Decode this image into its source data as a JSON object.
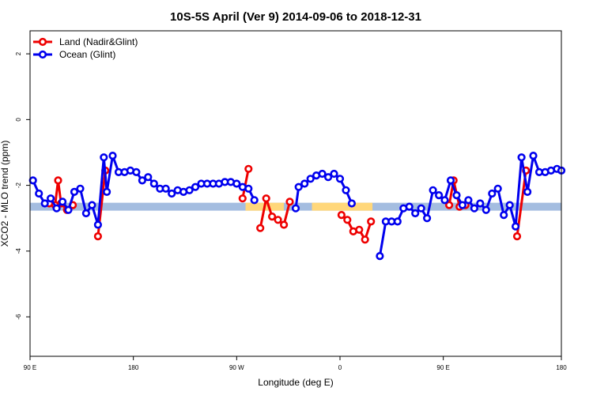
{
  "chart_data": {
    "type": "line",
    "title": "10S-5S April (Ver 9)   2014-09-06 to 2018-12-31",
    "xlabel": "Longitude (deg E)",
    "ylabel": "XCO2 - MLO trend (ppm)",
    "xlim": [
      90,
      450
    ],
    "ylim": [
      -7.2,
      2.7
    ],
    "x_ticks": [
      {
        "value": 90,
        "label": "90 E"
      },
      {
        "value": 160,
        "label": "180"
      },
      {
        "value": 230,
        "label": "90 W"
      },
      {
        "value": 300,
        "label": "0"
      },
      {
        "value": 370,
        "label": "90 E"
      },
      {
        "value": 450,
        "label": "180"
      }
    ],
    "y_ticks": [
      {
        "value": -6,
        "label": "-6"
      },
      {
        "value": -4,
        "label": "-4"
      },
      {
        "value": -2,
        "label": "-2"
      },
      {
        "value": 0,
        "label": "0"
      },
      {
        "value": 2,
        "label": "2"
      }
    ],
    "legend": {
      "position": "top-left",
      "entries": [
        {
          "name": "Land (Nadir&Glint)",
          "color": "#ee0000"
        },
        {
          "name": "Ocean (Glint)",
          "color": "#0000ee"
        }
      ]
    },
    "band": {
      "y_center": -2.65,
      "y_half_width": 0.12,
      "ocean_color": "#a4bde0",
      "land_color": "#ffd77a",
      "land_ranges": [
        [
          236,
          262
        ],
        [
          281,
          322
        ]
      ]
    },
    "series": [
      {
        "name": "Land (Nadir&Glint)",
        "color": "#ee0000",
        "segments": [
          [
            [
              103,
              -2.55
            ],
            [
              107,
              -2.6
            ],
            [
              109,
              -1.85
            ],
            [
              111,
              -2.55
            ],
            [
              115,
              -2.75
            ],
            [
              119,
              -2.6
            ]
          ],
          [
            [
              136,
              -3.55
            ],
            [
              141,
              -1.55
            ]
          ],
          [
            [
              234,
              -2.4
            ],
            [
              238,
              -1.5
            ]
          ],
          [
            [
              246,
              -3.3
            ],
            [
              250,
              -2.4
            ],
            [
              254,
              -2.95
            ],
            [
              258,
              -3.05
            ],
            [
              262,
              -3.2
            ],
            [
              266,
              -2.5
            ]
          ],
          [
            [
              301,
              -2.9
            ],
            [
              305,
              -3.05
            ],
            [
              309,
              -3.4
            ],
            [
              313,
              -3.35
            ],
            [
              317,
              -3.65
            ],
            [
              321,
              -3.1
            ]
          ],
          [
            [
              374,
              -2.6
            ],
            [
              377,
              -1.85
            ],
            [
              381,
              -2.65
            ],
            [
              385,
              -2.6
            ]
          ],
          [
            [
              420,
              -3.55
            ],
            [
              426,
              -1.55
            ]
          ]
        ]
      },
      {
        "name": "Ocean (Glint)",
        "color": "#0000ee",
        "segments": [
          [
            [
              92,
              -1.85
            ],
            [
              96,
              -2.25
            ],
            [
              100,
              -2.55
            ],
            [
              104,
              -2.4
            ],
            [
              108,
              -2.7
            ],
            [
              112,
              -2.5
            ],
            [
              116,
              -2.75
            ],
            [
              120,
              -2.2
            ],
            [
              124,
              -2.1
            ],
            [
              128,
              -2.85
            ],
            [
              132,
              -2.6
            ],
            [
              136,
              -3.2
            ],
            [
              140,
              -1.15
            ],
            [
              142,
              -2.2
            ],
            [
              146,
              -1.1
            ],
            [
              150,
              -1.6
            ],
            [
              154,
              -1.6
            ],
            [
              158,
              -1.55
            ],
            [
              162,
              -1.6
            ],
            [
              166,
              -1.85
            ],
            [
              170,
              -1.75
            ],
            [
              174,
              -1.95
            ],
            [
              178,
              -2.1
            ],
            [
              182,
              -2.1
            ],
            [
              186,
              -2.25
            ],
            [
              190,
              -2.15
            ],
            [
              194,
              -2.2
            ],
            [
              198,
              -2.15
            ],
            [
              202,
              -2.05
            ],
            [
              206,
              -1.95
            ],
            [
              210,
              -1.95
            ],
            [
              214,
              -1.95
            ],
            [
              218,
              -1.95
            ],
            [
              222,
              -1.9
            ],
            [
              226,
              -1.9
            ],
            [
              230,
              -1.95
            ],
            [
              234,
              -2.05
            ],
            [
              238,
              -2.1
            ],
            [
              242,
              -2.45
            ]
          ],
          [
            [
              270,
              -2.7
            ],
            [
              272,
              -2.05
            ],
            [
              276,
              -1.95
            ],
            [
              280,
              -1.8
            ],
            [
              284,
              -1.7
            ],
            [
              288,
              -1.65
            ],
            [
              292,
              -1.75
            ],
            [
              296,
              -1.65
            ],
            [
              300,
              -1.8
            ],
            [
              304,
              -2.15
            ],
            [
              308,
              -2.55
            ]
          ],
          [
            [
              327,
              -4.15
            ],
            [
              331,
              -3.1
            ],
            [
              335,
              -3.1
            ],
            [
              339,
              -3.1
            ],
            [
              343,
              -2.7
            ],
            [
              347,
              -2.65
            ],
            [
              351,
              -2.85
            ],
            [
              355,
              -2.7
            ],
            [
              359,
              -3.0
            ],
            [
              363,
              -2.15
            ],
            [
              367,
              -2.3
            ],
            [
              371,
              -2.45
            ],
            [
              375,
              -1.85
            ],
            [
              379,
              -2.3
            ],
            [
              383,
              -2.6
            ],
            [
              387,
              -2.45
            ],
            [
              391,
              -2.7
            ],
            [
              395,
              -2.55
            ],
            [
              399,
              -2.75
            ],
            [
              403,
              -2.25
            ],
            [
              407,
              -2.1
            ],
            [
              411,
              -2.9
            ],
            [
              415,
              -2.6
            ],
            [
              419,
              -3.25
            ],
            [
              423,
              -1.15
            ],
            [
              427,
              -2.2
            ],
            [
              431,
              -1.1
            ],
            [
              435,
              -1.6
            ],
            [
              439,
              -1.6
            ],
            [
              443,
              -1.55
            ],
            [
              447,
              -1.5
            ],
            [
              450,
              -1.55
            ]
          ]
        ]
      }
    ]
  }
}
